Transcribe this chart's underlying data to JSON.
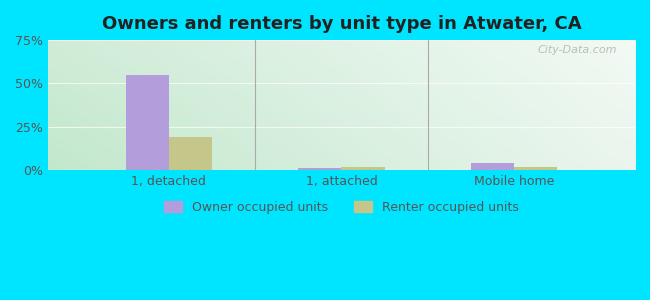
{
  "title": "Owners and renters by unit type in Atwater, CA",
  "categories": [
    "1, detached",
    "1, attached",
    "Mobile home"
  ],
  "owner_values": [
    55,
    1,
    4
  ],
  "renter_values": [
    19,
    2,
    2
  ],
  "owner_color": "#b39ddb",
  "renter_color": "#c5c68a",
  "ylim": [
    0,
    75
  ],
  "yticks": [
    0,
    25,
    50,
    75
  ],
  "yticklabels": [
    "0%",
    "25%",
    "50%",
    "75%"
  ],
  "bar_width": 0.25,
  "background_outer": "#00e5ff",
  "legend_owner": "Owner occupied units",
  "legend_renter": "Renter occupied units",
  "watermark": "City-Data.com",
  "title_fontsize": 13,
  "axis_fontsize": 9,
  "separator_color": "#aaaaaa",
  "grid_color": "#ccddcc",
  "tick_label_color": "#555555"
}
